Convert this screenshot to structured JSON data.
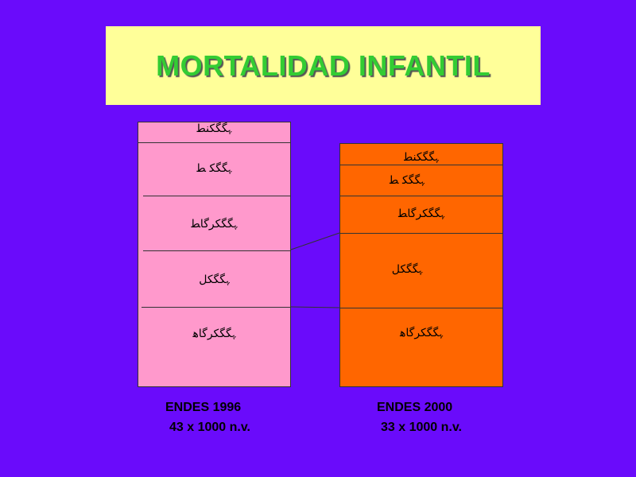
{
  "title": "MORTALIDAD INFANTIL",
  "columns": [
    {
      "segments": [
        "ﮩﮕﮕﮑﻨﻄ",
        "ﮩﮕﮕﮑ ﻄ",
        "ﮩﮕﮕﮑﺮﮔﺎﻄ",
        "ﮩﮕﮕﮑﻞ",
        "ﮩﮕﮕﮑﺮﮔﺎﻫ"
      ],
      "survey": "ENDES 1996",
      "rate": "43 x 1000 n.v."
    },
    {
      "segments": [
        "ﮩﮕﮕﮑﻨﻄ",
        "ﮩﮕﮕﮑ ﻄ",
        "ﮩﮕﮕﮑﺮﮔﺎﻄ",
        "ﮩﮕﮕﮑﻞ",
        "ﮩﮕﮕﮑﺮﮔﺎﻫ"
      ],
      "survey": "ENDES 2000",
      "rate": "33 x 1000 n.v."
    }
  ],
  "colors": {
    "background": "#6a0bfb",
    "title_box": "#ffff99",
    "title_text": "#33cc33",
    "column_1996": "#ff99cc",
    "column_2000": "#ff6600"
  }
}
